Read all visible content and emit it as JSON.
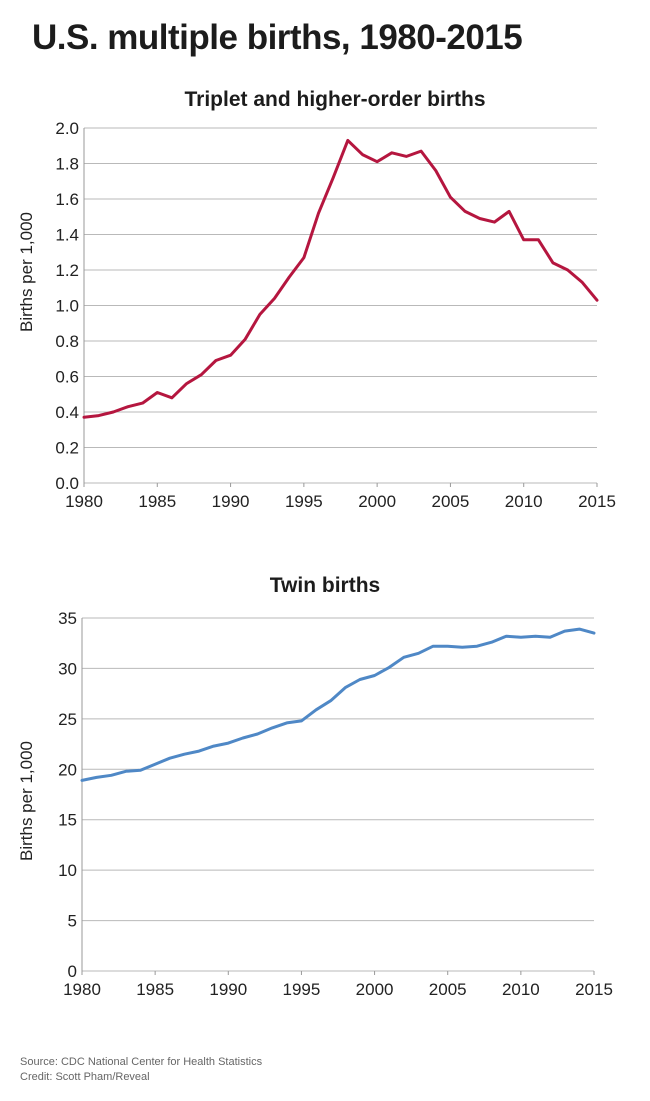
{
  "title": "U.S. multiple births, 1980-2015",
  "footer": {
    "source": "Source: CDC National Center for Health Statistics",
    "credit": "Credit: Scott Pham/Reveal"
  },
  "chart_data": [
    {
      "type": "line",
      "title": "Triplet and higher-order births",
      "xlabel": "",
      "ylabel": "Births per 1,000",
      "xlim": [
        1980,
        2015
      ],
      "ylim": [
        0,
        2.0
      ],
      "xticks": [
        "1980",
        "1985",
        "1990",
        "1995",
        "2000",
        "2005",
        "2010",
        "2015"
      ],
      "yticks": [
        "0.0",
        "0.2",
        "0.4",
        "0.6",
        "0.8",
        "1.0",
        "1.2",
        "1.4",
        "1.6",
        "1.8",
        "2.0"
      ],
      "grid": true,
      "color": "#b5163f",
      "series": [
        {
          "x": [
            1980,
            1981,
            1982,
            1983,
            1984,
            1985,
            1986,
            1987,
            1988,
            1989,
            1990,
            1991,
            1992,
            1993,
            1994,
            1995,
            1996,
            1997,
            1998,
            1999,
            2000,
            2001,
            2002,
            2003,
            2004,
            2005,
            2006,
            2007,
            2008,
            2009,
            2010,
            2011,
            2012,
            2013,
            2014,
            2015
          ],
          "values": [
            0.37,
            0.38,
            0.4,
            0.43,
            0.45,
            0.51,
            0.48,
            0.56,
            0.61,
            0.69,
            0.72,
            0.81,
            0.95,
            1.04,
            1.16,
            1.27,
            1.52,
            1.72,
            1.93,
            1.85,
            1.81,
            1.86,
            1.84,
            1.87,
            1.76,
            1.61,
            1.53,
            1.49,
            1.47,
            1.53,
            1.37,
            1.37,
            1.24,
            1.2,
            1.13,
            1.03
          ]
        }
      ]
    },
    {
      "type": "line",
      "title": "Twin births",
      "xlabel": "",
      "ylabel": "Births per 1,000",
      "xlim": [
        1980,
        2015
      ],
      "ylim": [
        0,
        35
      ],
      "xticks": [
        "1980",
        "1985",
        "1990",
        "1995",
        "2000",
        "2005",
        "2010",
        "2015"
      ],
      "yticks": [
        "0",
        "5",
        "10",
        "15",
        "20",
        "25",
        "30",
        "35"
      ],
      "grid": true,
      "color": "#4f88c6",
      "series": [
        {
          "x": [
            1980,
            1981,
            1982,
            1983,
            1984,
            1985,
            1986,
            1987,
            1988,
            1989,
            1990,
            1991,
            1992,
            1993,
            1994,
            1995,
            1996,
            1997,
            1998,
            1999,
            2000,
            2001,
            2002,
            2003,
            2004,
            2005,
            2006,
            2007,
            2008,
            2009,
            2010,
            2011,
            2012,
            2013,
            2014,
            2015
          ],
          "values": [
            18.9,
            19.2,
            19.4,
            19.8,
            19.9,
            20.5,
            21.1,
            21.5,
            21.8,
            22.3,
            22.6,
            23.1,
            23.5,
            24.1,
            24.6,
            24.8,
            25.9,
            26.8,
            28.1,
            28.9,
            29.3,
            30.1,
            31.1,
            31.5,
            32.2,
            32.2,
            32.1,
            32.2,
            32.6,
            33.2,
            33.1,
            33.2,
            33.1,
            33.7,
            33.9,
            33.5
          ]
        }
      ]
    }
  ]
}
